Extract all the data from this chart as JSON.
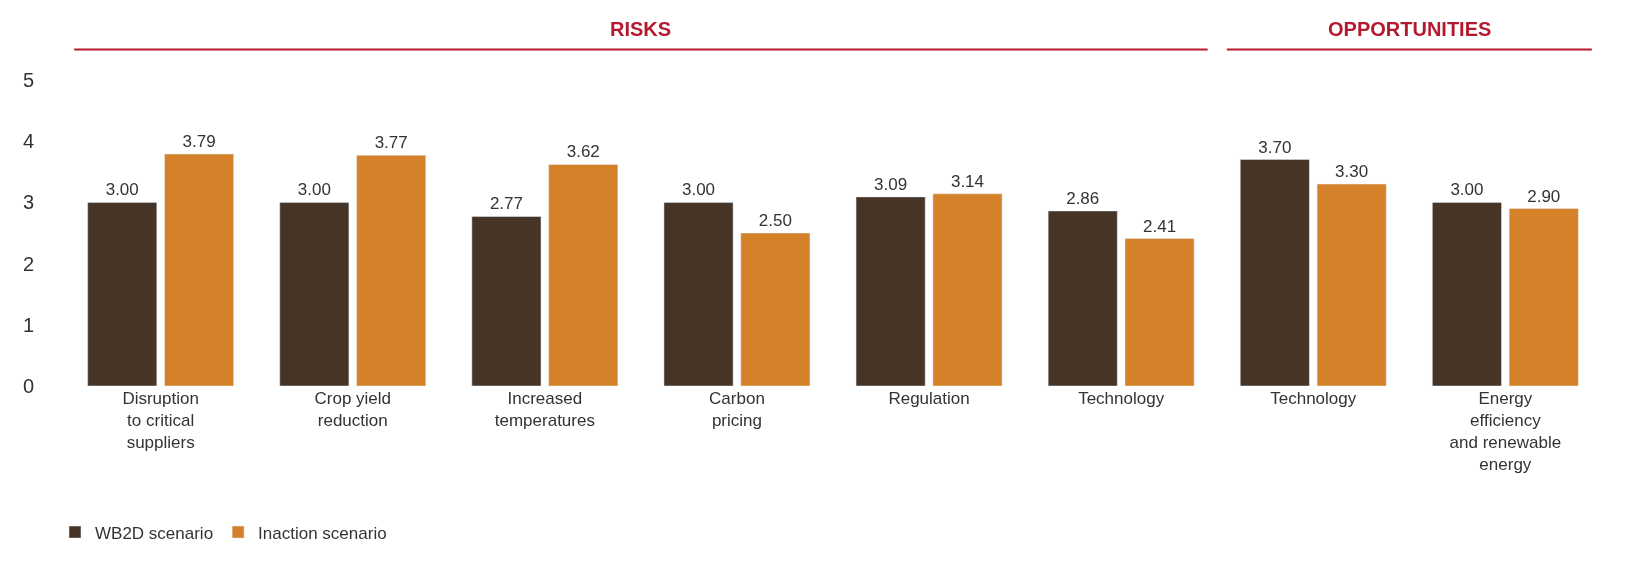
{
  "chart_data": {
    "type": "bar",
    "categories": [
      "Disruption\nto critical\nsuppliers",
      "Crop yield\nreduction",
      "Increased\ntemperatures",
      "Carbon\npricing",
      "Regulation",
      "Technology",
      "Technology",
      "Energy\nefficiency\nand renewable\nenergy"
    ],
    "series": [
      {
        "name": "WB2D scenario",
        "color": "#463426",
        "values": [
          3.0,
          3.0,
          2.77,
          3.0,
          3.09,
          2.86,
          3.7,
          3.0
        ],
        "value_labels": [
          "3.00",
          "3.00",
          "2.77",
          "3.00",
          "3.09",
          "2.86",
          "3.70",
          "3.00"
        ]
      },
      {
        "name": "Inaction scenario",
        "color": "#d4812a",
        "values": [
          3.79,
          3.77,
          3.62,
          2.5,
          3.14,
          2.41,
          3.3,
          2.9
        ],
        "value_labels": [
          "3.79",
          "3.77",
          "3.62",
          "2.50",
          "3.14",
          "2.41",
          "3.30",
          "2.90"
        ]
      }
    ],
    "ylim": [
      0,
      5
    ],
    "yticks": [
      0,
      1,
      2,
      3,
      4,
      5
    ],
    "legend": "bottom left",
    "annotations": [
      "RISKS",
      "OPPORTUNITIES"
    ]
  }
}
